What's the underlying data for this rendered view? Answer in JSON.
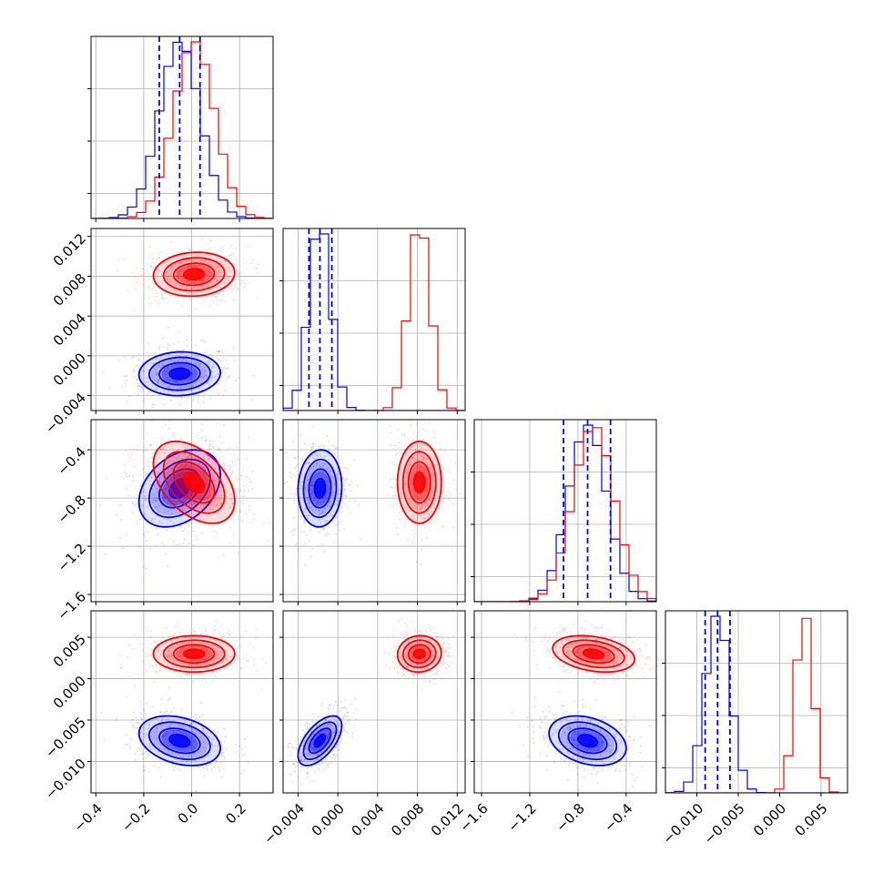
{
  "chart_data": {
    "type": "corner",
    "grid": true,
    "colors": {
      "blue": "#0000ff",
      "red": "#ff0000"
    },
    "parameters": [
      {
        "id": "p0",
        "lim": [
          -0.42,
          0.34
        ],
        "ticks": [
          -0.4,
          -0.2,
          0.0,
          0.2
        ],
        "tick_labels": [
          "−0.4",
          "−0.2",
          "0.0",
          "0.2"
        ]
      },
      {
        "id": "p1",
        "lim": [
          -0.0055,
          0.0128
        ],
        "ticks": [
          -0.004,
          0.0,
          0.004,
          0.008,
          0.012
        ],
        "tick_labels": [
          "−0.004",
          "0.000",
          "0.004",
          "0.008",
          "0.012"
        ]
      },
      {
        "id": "p2",
        "lim": [
          -1.66,
          -0.15
        ],
        "ticks": [
          -1.6,
          -1.2,
          -0.8,
          -0.4
        ],
        "tick_labels": [
          "−1.6",
          "−1.2",
          "−0.8",
          "−0.4"
        ]
      },
      {
        "id": "p3",
        "lim": [
          -0.0138,
          0.0082
        ],
        "ticks": [
          -0.01,
          -0.005,
          0.0,
          0.005
        ],
        "tick_labels": [
          "−0.010",
          "−0.005",
          "0.000",
          "0.005"
        ]
      }
    ],
    "series": [
      {
        "color": "blue",
        "means": [
          -0.05,
          -0.0018,
          -0.72,
          -0.0075
        ],
        "sds": [
          0.085,
          0.0011,
          0.16,
          0.0015
        ]
      },
      {
        "color": "red",
        "means": [
          0.01,
          0.0082,
          -0.67,
          0.003
        ],
        "sds": [
          0.085,
          0.0011,
          0.17,
          0.0011
        ]
      }
    ],
    "quantiles_blue": [
      [
        -0.135,
        -0.05,
        0.035
      ],
      [
        -0.0029,
        -0.0018,
        -0.0006
      ],
      [
        -0.92,
        -0.72,
        -0.53
      ],
      [
        -0.009,
        -0.0075,
        -0.006
      ]
    ],
    "pairs": [
      {
        "row": 1,
        "col": 0,
        "blue_corr": 0.05,
        "red_corr": 0.0
      },
      {
        "row": 2,
        "col": 0,
        "blue_corr": 0.35,
        "red_corr": -0.45
      },
      {
        "row": 2,
        "col": 1,
        "blue_corr": 0.05,
        "red_corr": 0.0
      },
      {
        "row": 3,
        "col": 0,
        "blue_corr": -0.3,
        "red_corr": 0.0
      },
      {
        "row": 3,
        "col": 1,
        "blue_corr": 0.6,
        "red_corr": 0.05
      },
      {
        "row": 3,
        "col": 2,
        "blue_corr": -0.3,
        "red_corr": -0.3
      }
    ]
  }
}
